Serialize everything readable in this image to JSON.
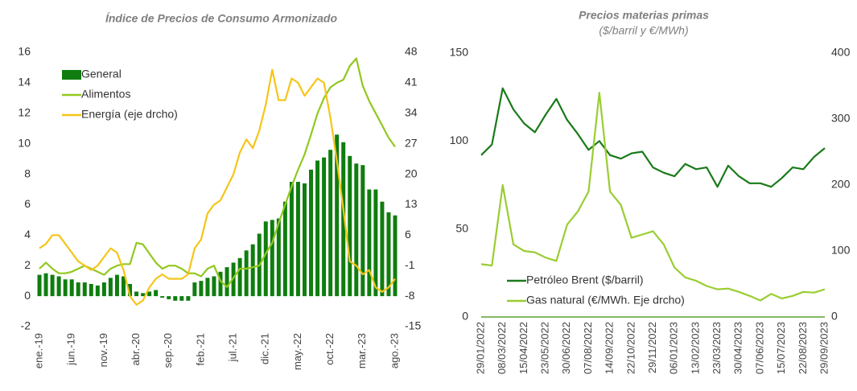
{
  "chart_data": [
    {
      "type": "bar",
      "title": "Índice de Precios de Consumo Armonizado",
      "categories": [
        "ene.-19",
        null,
        null,
        null,
        null,
        "jun.-19",
        null,
        null,
        null,
        null,
        "nov.-19",
        null,
        null,
        null,
        null,
        "abr.-20",
        null,
        null,
        null,
        null,
        "sep.-20",
        null,
        null,
        null,
        null,
        "feb.-21",
        null,
        null,
        null,
        null,
        "jul.-21",
        null,
        null,
        null,
        null,
        "dic.-21",
        null,
        null,
        null,
        null,
        "may.-22",
        null,
        null,
        null,
        null,
        "oct.-22",
        null,
        null,
        null,
        null,
        "mar.-23",
        null,
        null,
        null,
        null,
        "ago.-23"
      ],
      "series": [
        {
          "name": "General",
          "type": "bar",
          "color": "#0f7d0f",
          "values": [
            1.4,
            1.5,
            1.4,
            1.3,
            1.1,
            1.1,
            0.9,
            0.9,
            0.8,
            0.7,
            0.9,
            1.2,
            1.4,
            1.3,
            0.8,
            0.3,
            0.2,
            0.3,
            0.4,
            -0.1,
            -0.2,
            -0.3,
            -0.3,
            -0.3,
            0.9,
            1.0,
            1.2,
            1.3,
            1.6,
            1.9,
            2.2,
            2.5,
            3.0,
            3.4,
            4.1,
            4.9,
            5.0,
            5.1,
            6.2,
            7.5,
            7.5,
            7.4,
            8.3,
            8.9,
            9.1,
            9.6,
            10.6,
            10.1,
            9.2,
            8.7,
            8.6,
            7.0,
            7.0,
            6.2,
            5.5,
            5.3
          ]
        },
        {
          "name": "Alimentos",
          "type": "line",
          "color": "#92c81e",
          "values": [
            1.8,
            2.2,
            1.8,
            1.5,
            1.5,
            1.6,
            1.8,
            2.0,
            1.8,
            1.6,
            1.4,
            1.8,
            2.0,
            2.1,
            2.1,
            3.5,
            3.4,
            2.8,
            2.2,
            1.8,
            2.0,
            2.0,
            1.8,
            1.5,
            1.5,
            1.3,
            1.8,
            2.0,
            1.0,
            0.6,
            1.2,
            1.8,
            1.8,
            1.9,
            2.0,
            2.8,
            3.5,
            4.8,
            6.0,
            7.2,
            8.3,
            9.3,
            10.6,
            12.0,
            13.0,
            13.7,
            14.0,
            14.2,
            15.1,
            15.6,
            13.8,
            12.8,
            12.0,
            11.2,
            10.4,
            9.8
          ]
        },
        {
          "name": "Energía (eje drcho)",
          "type": "line",
          "axis": "y2",
          "color": "#f5c518",
          "values": [
            3,
            4,
            6,
            6,
            4,
            2,
            0,
            -1,
            -2,
            -1,
            1,
            3,
            2,
            -2,
            -8,
            -10,
            -9,
            -6,
            -4,
            -3,
            -4,
            -4,
            -4,
            -3,
            3,
            5,
            11,
            13,
            14,
            17,
            20,
            25,
            28,
            26,
            30,
            36,
            44,
            37,
            37,
            42,
            41,
            38,
            40,
            42,
            41,
            33,
            23,
            12,
            0,
            -1,
            -3,
            -2,
            -6,
            -7,
            -6,
            -4
          ]
        }
      ],
      "ylim": [
        -2,
        16
      ],
      "yticks": [
        -2,
        0,
        2,
        4,
        6,
        8,
        10,
        12,
        14,
        16
      ],
      "y2lim": [
        -15,
        48
      ],
      "y2ticks": [
        -15,
        -8,
        -1,
        6,
        13,
        20,
        27,
        34,
        41,
        48
      ],
      "legend": "upper left"
    },
    {
      "type": "line",
      "title": "Precios materias primas",
      "subtitle": "($/barril y €/MWh)",
      "x": [
        "29/01/2022",
        "17/02/2022",
        "08/03/2022",
        "27/03/2022",
        "15/04/2022",
        "04/05/2022",
        "23/05/2022",
        "11/06/2022",
        "30/06/2022",
        "19/07/2022",
        "07/08/2022",
        "26/08/2022",
        "14/09/2022",
        "03/10/2022",
        "22/10/2022",
        "10/11/2022",
        "29/11/2022",
        "18/12/2022",
        "06/01/2023",
        "25/01/2023",
        "13/02/2023",
        "04/03/2023",
        "23/03/2023",
        "11/04/2023",
        "30/04/2023",
        "19/05/2023",
        "07/06/2023",
        "26/06/2023",
        "15/07/2023",
        "03/08/2023",
        "22/08/2023",
        "10/09/2023",
        "29/09/2023"
      ],
      "series": [
        {
          "name": "Petróleo Brent ($/barril)",
          "color": "#1a7a1a",
          "values": [
            92,
            98,
            130,
            118,
            110,
            105,
            115,
            124,
            112,
            104,
            95,
            100,
            92,
            90,
            93,
            94,
            85,
            82,
            80,
            87,
            84,
            85,
            74,
            86,
            80,
            76,
            76,
            74,
            79,
            85,
            84,
            91,
            96
          ]
        },
        {
          "name": "Gas natural (€/MWh. Eje drcho)",
          "axis": "y2",
          "color": "#9acd32",
          "values": [
            80,
            78,
            200,
            110,
            100,
            98,
            90,
            85,
            140,
            160,
            190,
            340,
            190,
            170,
            120,
            125,
            130,
            110,
            75,
            60,
            55,
            47,
            42,
            43,
            38,
            32,
            25,
            35,
            28,
            32,
            38,
            37,
            42
          ]
        }
      ],
      "xlim": [
        "29/01/2022",
        "29/09/2023"
      ],
      "xticks": [
        "29/01/2022",
        "08/03/2022",
        "15/04/2022",
        "23/05/2022",
        "30/06/2022",
        "07/08/2022",
        "14/09/2022",
        "22/10/2022",
        "29/11/2022",
        "06/01/2023",
        "13/02/2023",
        "23/03/2023",
        "30/04/2023",
        "07/06/2023",
        "15/07/2023",
        "22/08/2023",
        "29/09/2023"
      ],
      "ylim": [
        0,
        150
      ],
      "yticks": [
        0,
        50,
        100,
        150
      ],
      "y2lim": [
        0,
        400
      ],
      "y2ticks": [
        0,
        100,
        200,
        300,
        400
      ],
      "legend": "lower left"
    }
  ]
}
